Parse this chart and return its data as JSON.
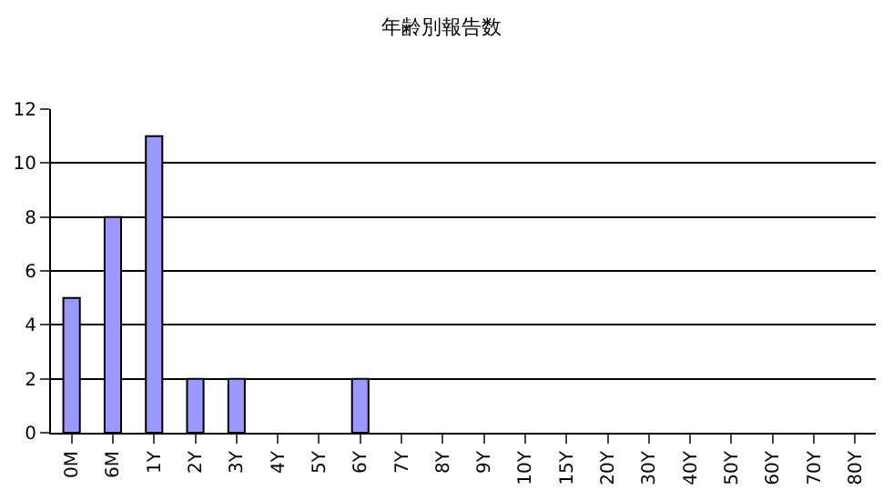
{
  "chart_data": {
    "type": "bar",
    "title": "年齢別報告数",
    "categories": [
      "0M",
      "6M",
      "1Y",
      "2Y",
      "3Y",
      "4Y",
      "5Y",
      "6Y",
      "7Y",
      "8Y",
      "9Y",
      "10Y",
      "15Y",
      "20Y",
      "30Y",
      "40Y",
      "50Y",
      "60Y",
      "70Y",
      "80Y"
    ],
    "values": [
      5,
      8,
      11,
      2,
      2,
      0,
      0,
      2,
      0,
      0,
      0,
      0,
      0,
      0,
      0,
      0,
      0,
      0,
      0,
      0
    ],
    "color": "#9999ff",
    "ylim": [
      0,
      12
    ],
    "yticks": [
      0,
      2,
      4,
      6,
      8,
      10,
      12
    ],
    "grid": "y"
  }
}
